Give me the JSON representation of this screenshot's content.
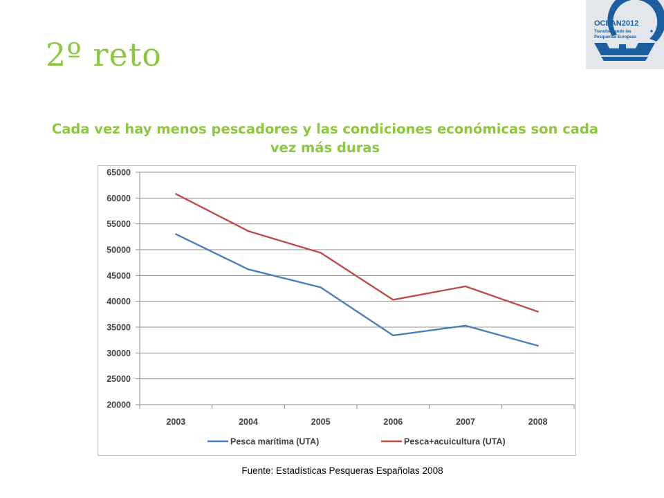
{
  "slide": {
    "title": "2º reto",
    "subtitle": "Cada vez hay menos pescadores y las condiciones económicas son cada vez más duras",
    "source": "Fuente: Estadísticas Pesqueras Españolas 2008"
  },
  "logo": {
    "name": "OCEAN2012",
    "tagline_line1": "Transformando las",
    "tagline_line2": "Pesquerías Europeas",
    "colors": {
      "blue": "#1b5fa0",
      "light": "#e3e6ea"
    }
  },
  "chart_data": {
    "type": "line",
    "categories": [
      "2003",
      "2004",
      "2005",
      "2006",
      "2007",
      "2008"
    ],
    "series": [
      {
        "name": "Pesca marítima (UTA)",
        "color": "#4a7ebb",
        "values": [
          53000,
          46200,
          42700,
          33400,
          35300,
          31400
        ]
      },
      {
        "name": "Pesca+acuicultura (UTA)",
        "color": "#be4b48",
        "values": [
          60800,
          53600,
          49400,
          40300,
          42900,
          38000
        ]
      }
    ],
    "yticks": [
      65000,
      60000,
      55000,
      50000,
      45000,
      40000,
      35000,
      30000,
      25000,
      20000
    ],
    "ylim": [
      20000,
      65000
    ],
    "grid": true,
    "legend": "bottom",
    "title": "",
    "xlabel": "",
    "ylabel": ""
  }
}
